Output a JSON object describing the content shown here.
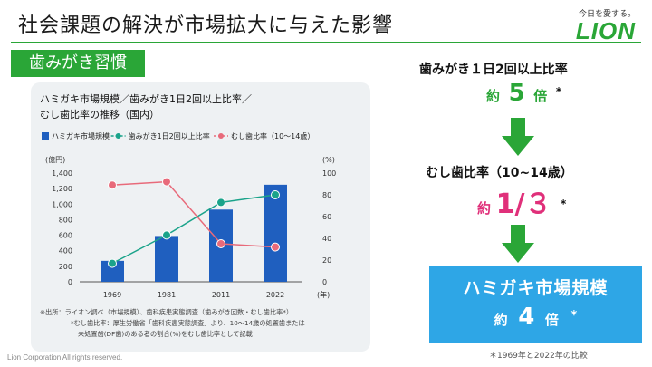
{
  "header": {
    "title": "社会課題の解決が市場拡大に与えた影響",
    "logo_tagline": "今日を愛する。",
    "logo_text": "LION"
  },
  "section_label": "歯みがき習慣",
  "chart_data": {
    "type": "bar",
    "title": "ハミガキ市場規模／歯みがき1日2回以上比率／",
    "subtitle": "むし歯比率の推移（国内）",
    "categories": [
      "1969",
      "1981",
      "2011",
      "2022"
    ],
    "x_unit": "(年)",
    "series": [
      {
        "name": "ハミガキ市場規模",
        "kind": "bar",
        "axis": "left",
        "color": "#1f5fbf",
        "values": [
          270,
          590,
          930,
          1250
        ]
      },
      {
        "name": "歯みがき1日2回以上比率",
        "kind": "line",
        "axis": "right",
        "color": "#1aa38a",
        "values": [
          17,
          43,
          73,
          80
        ]
      },
      {
        "name": "むし歯比率（10〜14歳）",
        "kind": "line",
        "axis": "right",
        "color": "#e86a7a",
        "values": [
          89,
          92,
          35,
          32
        ]
      }
    ],
    "y_left": {
      "unit": "(億円)",
      "ylim": [
        0,
        1400
      ],
      "ticks": [
        "0",
        "200",
        "400",
        "600",
        "800",
        "1,000",
        "1,200",
        "1,400"
      ]
    },
    "y_right": {
      "unit": "(%)",
      "ylim": [
        0,
        100
      ],
      "ticks": [
        "0",
        "20",
        "40",
        "60",
        "80",
        "100"
      ]
    },
    "grid": false,
    "legend": "top",
    "notes": [
      "※出所：ライオン調べ（市場規模）、歯科疾患実態調査（歯みがき回数・むし歯比率*）",
      "*むし歯比率：厚生労働省「歯科疾患実態調査」より、10～14歳の処置歯または",
      "未処置歯(DF歯)のある者の割合(%)をむし歯比率として記載"
    ]
  },
  "stats": {
    "brushing": {
      "title": "歯みがき１日2回以上比率",
      "prefix": "約",
      "value": "5",
      "suffix": "倍",
      "mark": "*",
      "color": "#2aa637"
    },
    "caries": {
      "title": "むし歯比率（10~14歳）",
      "prefix": "約",
      "value": "1/３",
      "mark": "*",
      "color": "#e0307a"
    },
    "market": {
      "title": "ハミガキ市場規模",
      "prefix": "約",
      "value": "4",
      "suffix": "倍",
      "mark": "*",
      "bg_color": "#2ea6e6"
    }
  },
  "footnote_right": "＊1969年と2022年の比較",
  "copyright": "Lion Corporation All rights reserved."
}
